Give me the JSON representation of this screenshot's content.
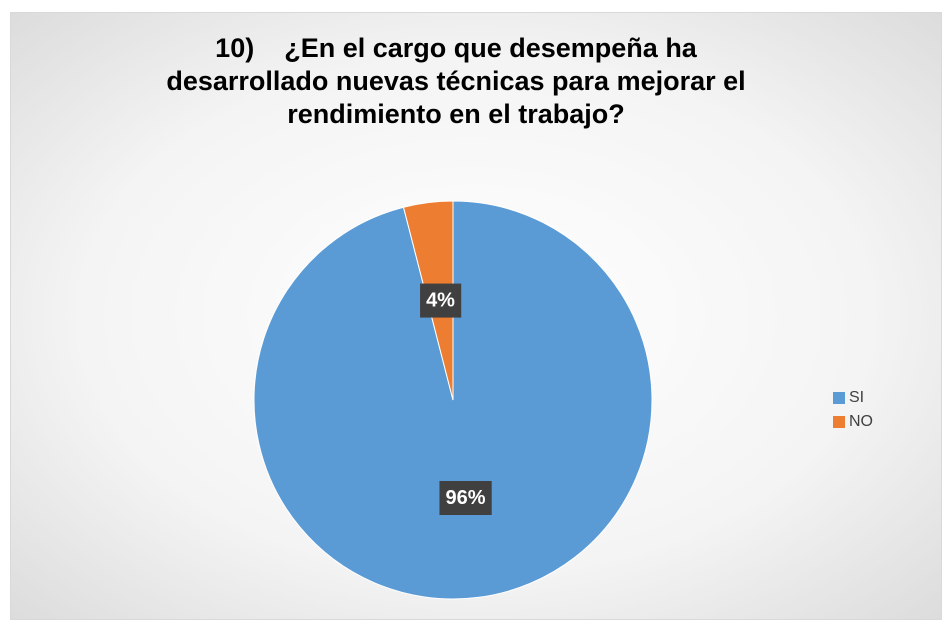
{
  "chart_data": {
    "type": "pie",
    "title": "10)    ¿En el cargo que desempeña ha desarrollado nuevas técnicas para mejorar el rendimiento en el trabajo?",
    "categories": [
      "SI",
      "NO"
    ],
    "values": [
      96,
      4
    ],
    "value_labels": [
      "96%",
      "4%"
    ],
    "colors": [
      "#5b9bd5",
      "#ed7d31"
    ],
    "legend": "right"
  }
}
